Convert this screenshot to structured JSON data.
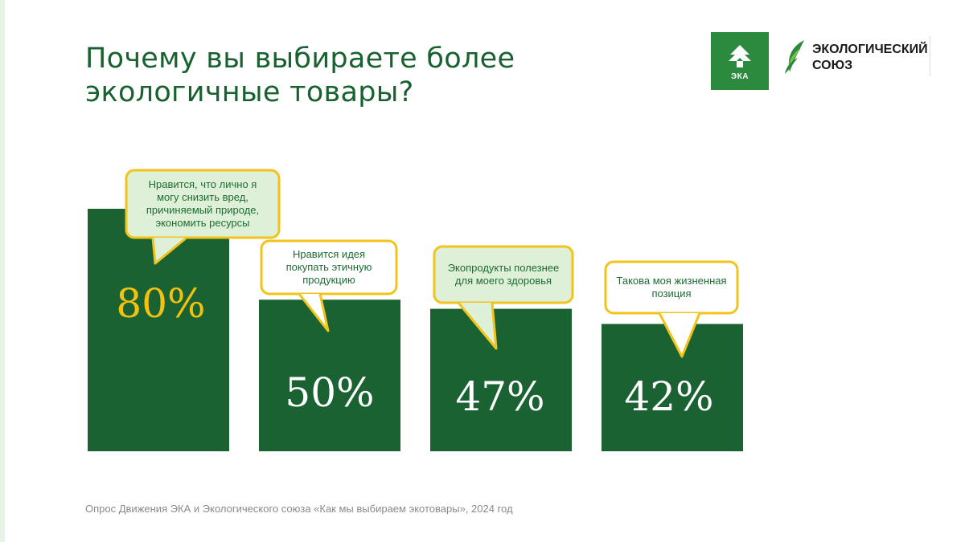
{
  "title_lines": [
    "Почему вы выбираете более",
    "экологичные товары?"
  ],
  "logos": {
    "eka": {
      "text": "ЭКА",
      "icon": "tree-arrow-icon",
      "color": "#2b8a3e"
    },
    "union": {
      "lines": [
        "ЭКОЛОГИЧЕСКИЙ",
        "СОЮЗ"
      ],
      "icon": "leaf-icon"
    }
  },
  "colors": {
    "bar": "#1b6233",
    "title": "#17622f",
    "highlight_label": "#f4c20d",
    "label": "#ffffff",
    "callout_border": "#f2c31a",
    "callout_fill_light": "#dff0d8",
    "callout_fill_white": "#ffffff",
    "callout_text": "#1e6b33"
  },
  "chart_data": {
    "type": "bar",
    "title": "Почему вы выбираете более экологичные товары?",
    "unit": "%",
    "ylim": [
      0,
      100
    ],
    "categories": [
      "Нравится, что лично я могу снизить вред, причиняемый природе, экономить ресурсы",
      "Нравится идея покупать этичную продукцию",
      "Экопродукты полезнее для моего здоровья",
      "Такова моя жизненная позиция"
    ],
    "values": [
      80,
      50,
      47,
      42
    ],
    "data_labels": [
      "80%",
      "50%",
      "47%",
      "42%"
    ],
    "callouts": [
      {
        "lines": [
          "Нравится, что лично я",
          "могу снизить вред,",
          "причиняемый природе,",
          "экономить ресурсы"
        ],
        "fill": "light"
      },
      {
        "lines": [
          "Нравится идея",
          "покупать этичную",
          "продукцию"
        ],
        "fill": "white"
      },
      {
        "lines": [
          "Экопродукты полезнее",
          "для моего здоровья"
        ],
        "fill": "light"
      },
      {
        "lines": [
          "Такова моя жизненная",
          "позиция"
        ],
        "fill": "white"
      }
    ]
  },
  "footnote": "Опрос Движения ЭКА и Экологического союза «Как мы выбираем экотовары», 2024 год"
}
